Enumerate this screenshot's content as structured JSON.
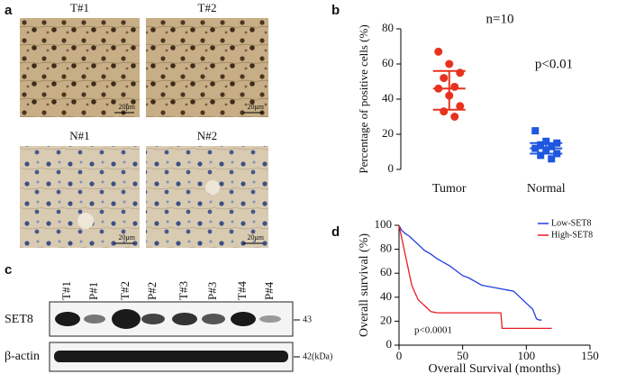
{
  "panel_labels": [
    "a",
    "b",
    "c",
    "d"
  ],
  "panel_a": {
    "images": [
      {
        "title": "T#1",
        "scale": "20μm"
      },
      {
        "title": "T#2",
        "scale": "20μm"
      },
      {
        "title": "N#1",
        "scale": "20μm"
      },
      {
        "title": "N#2",
        "scale": "20μm"
      }
    ]
  },
  "panel_c": {
    "lanes": [
      "T#1",
      "P#1",
      "T#2",
      "P#2",
      "T#3",
      "P#3",
      "T#4",
      "P#4"
    ],
    "rows": [
      {
        "label": "SET8",
        "size": "43"
      },
      {
        "label": "β-actin",
        "size": "42(kDa)"
      }
    ]
  },
  "chart_data": [
    {
      "type": "strip",
      "ylabel": "Percentage of positive cells (%)",
      "annotations": [
        "n=10",
        "p<0.01"
      ],
      "categories": [
        "Tumor",
        "Normal"
      ],
      "groups": [
        {
          "color": "#e8321e",
          "marker": "circle",
          "values": [
            67,
            60,
            55,
            52,
            47,
            46,
            42,
            36,
            33,
            30
          ],
          "mean": 46,
          "error_low": 34,
          "error_high": 56
        },
        {
          "color": "#1f56e0",
          "marker": "square",
          "values": [
            22,
            16,
            15,
            14,
            13,
            12,
            11,
            9,
            8,
            6
          ],
          "mean": 12,
          "error_low": 9,
          "error_high": 15
        }
      ],
      "ylim": [
        0,
        80
      ],
      "yticks": [
        0,
        20,
        40,
        60,
        80
      ]
    },
    {
      "type": "line",
      "xlabel": "Overall Survival (months)",
      "ylabel": "Overall survival (%)",
      "annotation": "p<0.0001",
      "legend": "upper right",
      "series": [
        {
          "name": "Low-SET8",
          "color": "#1f3fe0",
          "x": [
            0,
            2,
            5,
            8,
            10,
            12,
            15,
            18,
            20,
            25,
            30,
            35,
            40,
            45,
            50,
            55,
            60,
            65,
            70,
            75,
            80,
            85,
            90,
            95,
            100,
            105,
            108,
            110,
            112
          ],
          "y": [
            100,
            96,
            93,
            91,
            89,
            87,
            84,
            81,
            79,
            76,
            72,
            69,
            66,
            62,
            58,
            56,
            53,
            50,
            49,
            48,
            47,
            46,
            45,
            40,
            35,
            30,
            22,
            21,
            21
          ]
        },
        {
          "name": "High-SET8",
          "color": "#e81c24",
          "x": [
            0,
            2,
            4,
            6,
            8,
            10,
            12,
            15,
            18,
            20,
            25,
            30,
            40,
            60,
            80,
            81,
            120
          ],
          "y": [
            100,
            90,
            80,
            70,
            60,
            50,
            45,
            38,
            35,
            33,
            28,
            27,
            27,
            27,
            27,
            14,
            14
          ]
        }
      ],
      "xlim": [
        0,
        150
      ],
      "ylim": [
        0,
        100
      ],
      "xticks": [
        0,
        50,
        100,
        150
      ],
      "yticks": [
        0,
        20,
        40,
        60,
        80,
        100
      ]
    }
  ]
}
